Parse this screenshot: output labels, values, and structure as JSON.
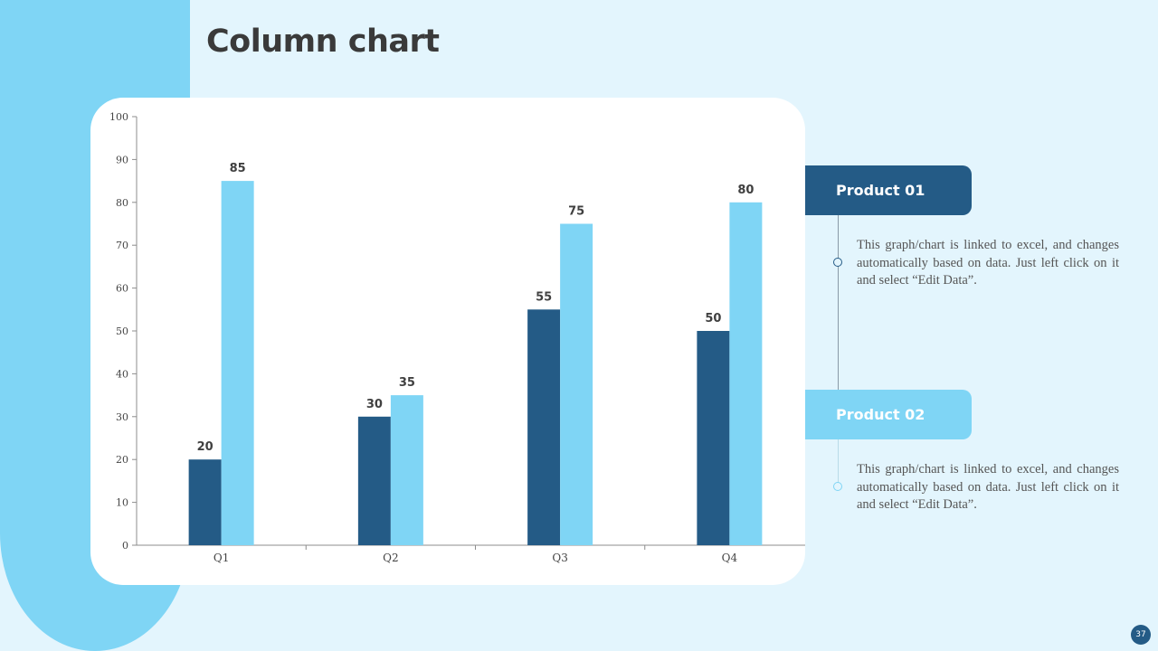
{
  "slide": {
    "title": "Column chart",
    "page_number": "37"
  },
  "colors": {
    "product_01": "#245b86",
    "product_02": "#7fd5f5",
    "background": "#e3f5fd"
  },
  "legend": [
    {
      "label": "Product 01",
      "description": "This graph/chart is linked to excel, and changes automatically based on data. Just left click on it and select “Edit Data”."
    },
    {
      "label": "Product 02",
      "description": "This graph/chart is linked to excel, and changes automatically based on data. Just left click on it and select “Edit Data”."
    }
  ],
  "chart_data": {
    "type": "bar",
    "categories": [
      "Q1",
      "Q2",
      "Q3",
      "Q4"
    ],
    "series": [
      {
        "name": "Product 01",
        "values": [
          20,
          30,
          55,
          50
        ],
        "color": "#245b86"
      },
      {
        "name": "Product 02",
        "values": [
          85,
          35,
          75,
          80
        ],
        "color": "#7fd5f5"
      }
    ],
    "ylim": [
      0,
      100
    ],
    "yticks": [
      0,
      10,
      20,
      30,
      40,
      50,
      60,
      70,
      80,
      90,
      100
    ],
    "grid": false,
    "legend_placement": "right",
    "title": "",
    "xlabel": "",
    "ylabel": ""
  }
}
